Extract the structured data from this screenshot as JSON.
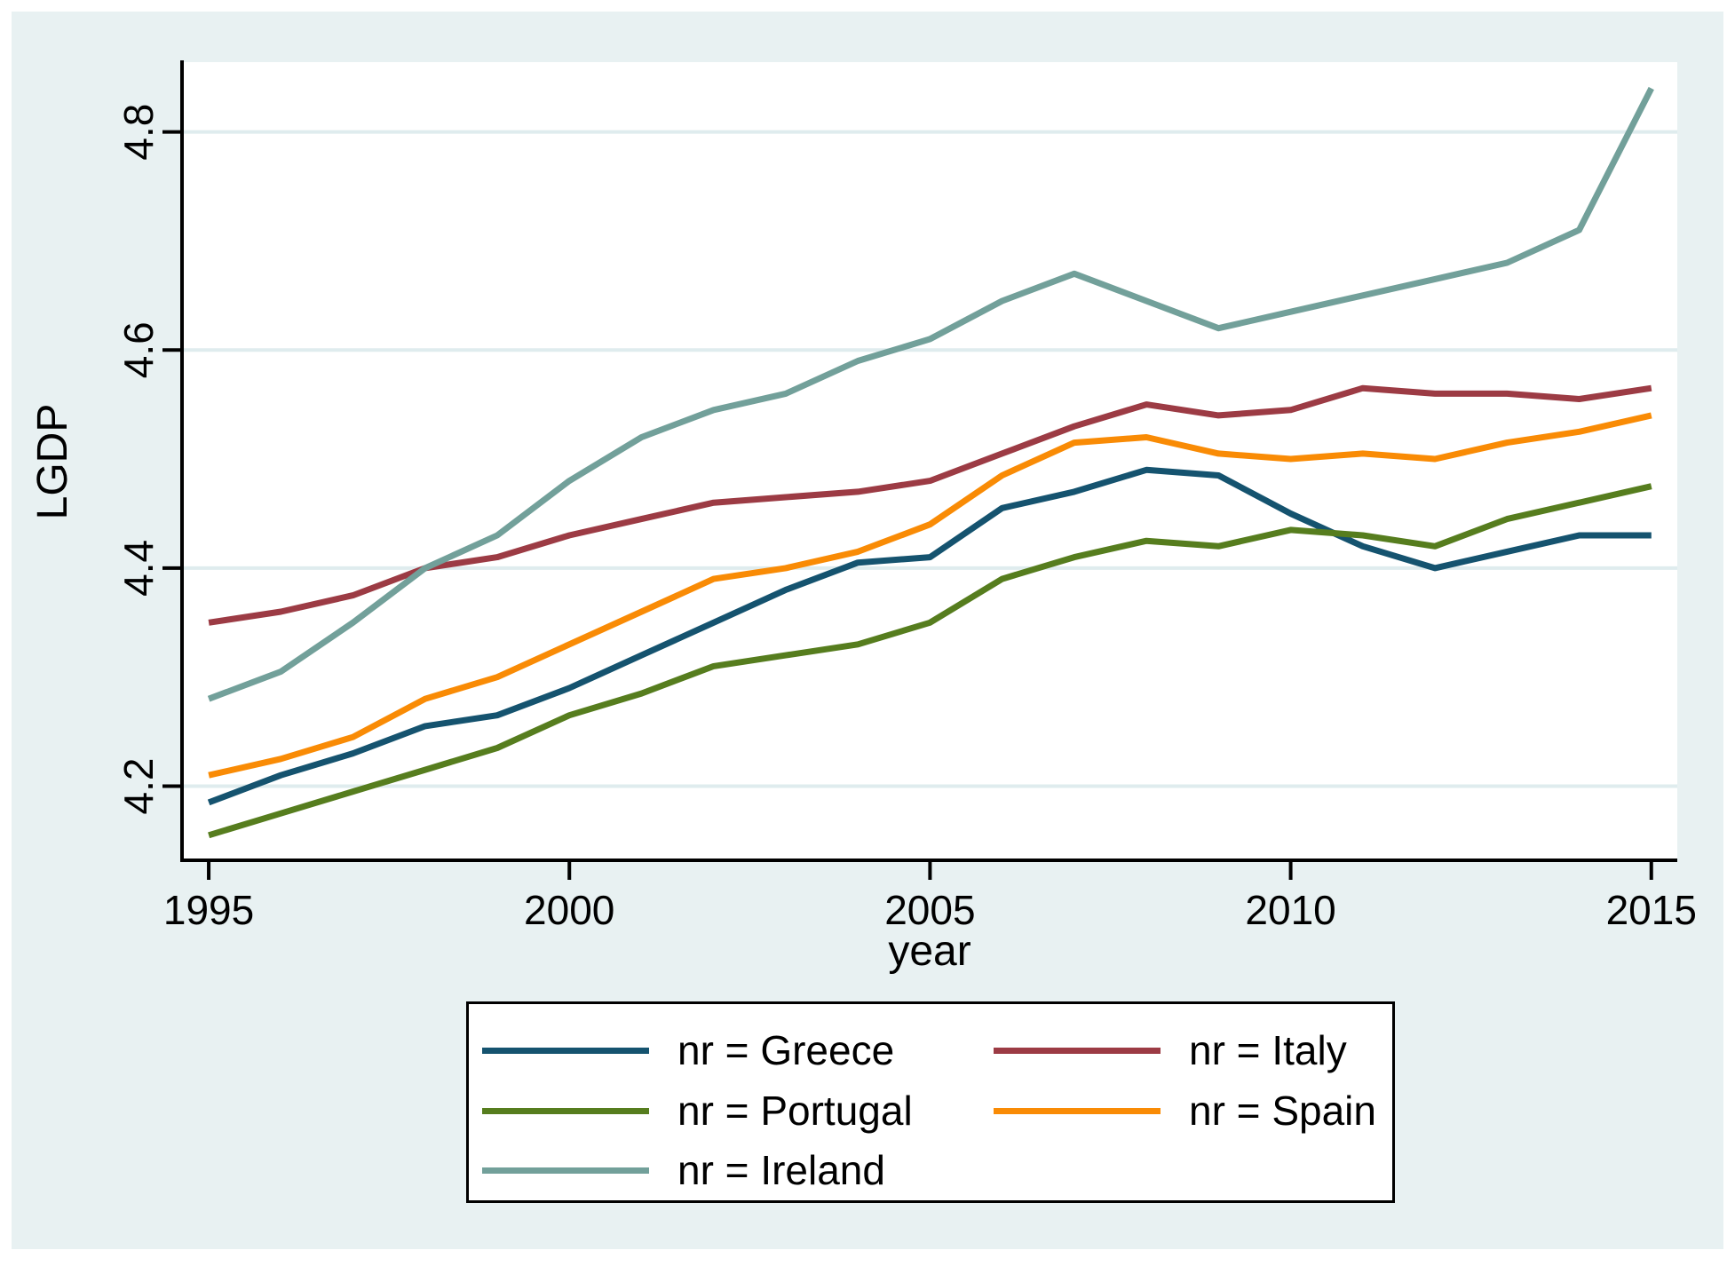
{
  "figure": {
    "background_color": "#e8f1f2",
    "plot_background_color": "#ffffff",
    "gridline_color": "#dfecee",
    "axis_color": "#000000"
  },
  "chart_data": {
    "type": "line",
    "title": "",
    "xlabel": "year",
    "ylabel": "LGDP",
    "grid": true,
    "legend_position": "below",
    "xlim": [
      1994.63,
      2015.36
    ],
    "ylim": [
      4.132,
      4.864
    ],
    "xticks": [
      1995,
      2000,
      2005,
      2010,
      2015
    ],
    "yticks": [
      "4.2",
      "4.4",
      "4.6",
      "4.8"
    ],
    "x": [
      1995,
      1996,
      1997,
      1998,
      1999,
      2000,
      2001,
      2002,
      2003,
      2004,
      2005,
      2006,
      2007,
      2008,
      2009,
      2010,
      2011,
      2012,
      2013,
      2014,
      2015
    ],
    "series": [
      {
        "name": "nr = Greece",
        "country": "Greece",
        "color": "#15536f",
        "values": [
          4.185,
          4.21,
          4.23,
          4.255,
          4.265,
          4.29,
          4.32,
          4.35,
          4.38,
          4.405,
          4.41,
          4.455,
          4.47,
          4.49,
          4.485,
          4.45,
          4.42,
          4.4,
          4.415,
          4.43,
          4.43
        ]
      },
      {
        "name": "nr = Italy",
        "country": "Italy",
        "color": "#9c3b44",
        "values": [
          4.35,
          4.36,
          4.375,
          4.4,
          4.41,
          4.43,
          4.445,
          4.46,
          4.465,
          4.47,
          4.48,
          4.505,
          4.53,
          4.55,
          4.54,
          4.545,
          4.565,
          4.56,
          4.56,
          4.555,
          4.565
        ]
      },
      {
        "name": "nr = Portugal",
        "country": "Portugal",
        "color": "#567d1e",
        "values": [
          4.155,
          4.175,
          4.195,
          4.215,
          4.235,
          4.265,
          4.285,
          4.31,
          4.32,
          4.33,
          4.35,
          4.39,
          4.41,
          4.425,
          4.42,
          4.435,
          4.43,
          4.42,
          4.445,
          4.46,
          4.475
        ]
      },
      {
        "name": "nr = Spain",
        "country": "Spain",
        "color": "#f98b05",
        "values": [
          4.21,
          4.225,
          4.245,
          4.28,
          4.3,
          4.33,
          4.36,
          4.39,
          4.4,
          4.415,
          4.44,
          4.485,
          4.515,
          4.52,
          4.505,
          4.5,
          4.505,
          4.5,
          4.515,
          4.525,
          4.54
        ]
      },
      {
        "name": "nr = Ireland",
        "country": "Ireland",
        "color": "#72a09a",
        "values": [
          4.28,
          4.305,
          4.35,
          4.4,
          4.43,
          4.48,
          4.52,
          4.545,
          4.56,
          4.59,
          4.61,
          4.645,
          4.67,
          4.645,
          4.62,
          4.635,
          4.65,
          4.665,
          4.68,
          4.71,
          4.84
        ]
      }
    ]
  }
}
